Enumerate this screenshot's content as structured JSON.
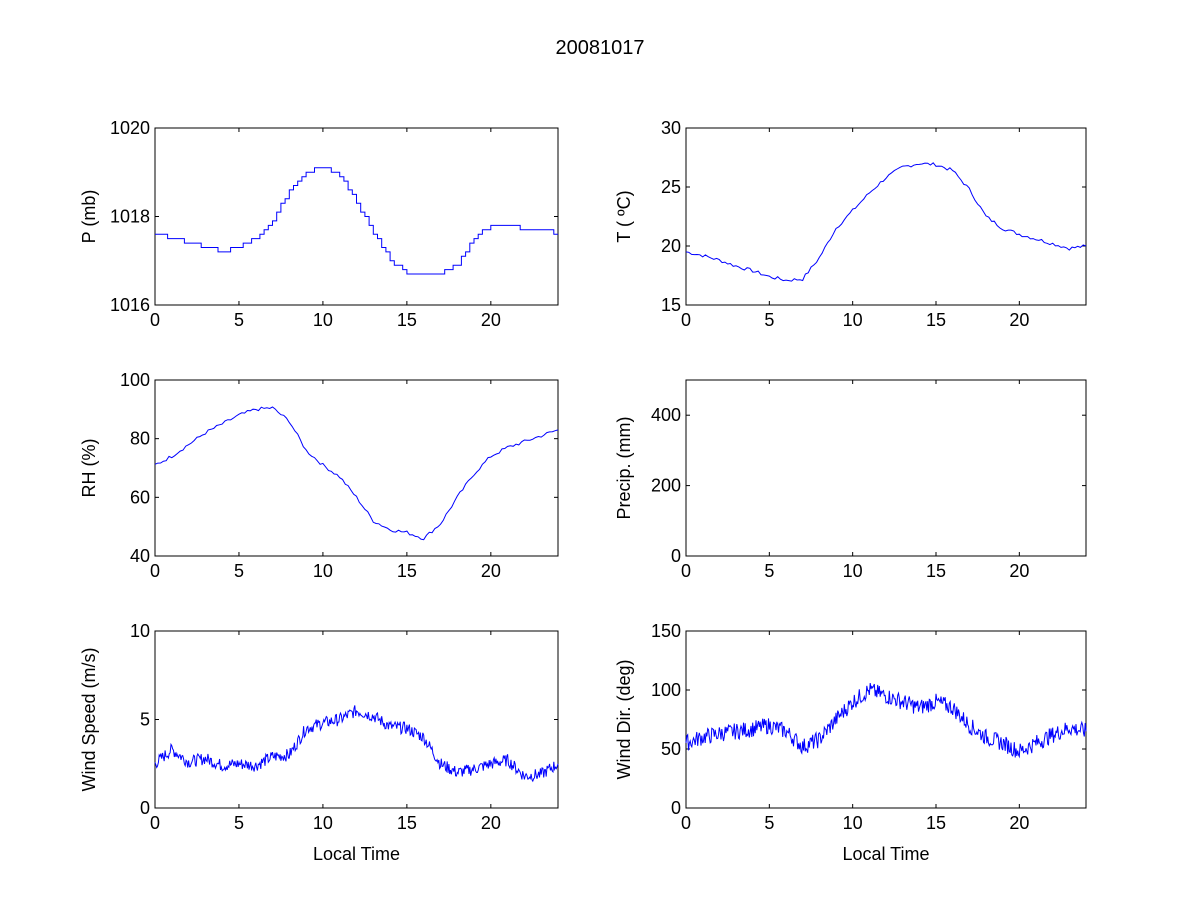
{
  "figure_title": "20081017",
  "chart_data": [
    {
      "type": "line",
      "id": "pressure",
      "ylabel": "P (mb)",
      "xlabel": "",
      "xlim": [
        0,
        24
      ],
      "ylim": [
        1016,
        1020
      ],
      "xticks": [
        0,
        5,
        10,
        15,
        20
      ],
      "yticks": [
        1016,
        1018,
        1020
      ],
      "step": true,
      "color": "#0000ff",
      "x": [
        0,
        1,
        2,
        3,
        4,
        5,
        6,
        7,
        8,
        9,
        10,
        11,
        12,
        13,
        14,
        15,
        16,
        17,
        18,
        19,
        20,
        21,
        22,
        23,
        24
      ],
      "y": [
        1017.6,
        1017.5,
        1017.4,
        1017.3,
        1017.2,
        1017.3,
        1017.5,
        1017.9,
        1018.6,
        1019.0,
        1019.1,
        1018.9,
        1018.3,
        1017.6,
        1017.0,
        1016.7,
        1016.7,
        1016.7,
        1016.9,
        1017.5,
        1017.8,
        1017.8,
        1017.7,
        1017.7,
        1017.6
      ]
    },
    {
      "type": "line",
      "id": "temperature",
      "ylabel": "T ( ºC)",
      "xlabel": "",
      "xlim": [
        0,
        24
      ],
      "ylim": [
        15,
        30
      ],
      "xticks": [
        0,
        5,
        10,
        15,
        20
      ],
      "yticks": [
        15,
        20,
        25,
        30
      ],
      "color": "#0000ff",
      "x": [
        0,
        1,
        2,
        3,
        4,
        5,
        6,
        7,
        8,
        9,
        10,
        11,
        12,
        13,
        14,
        15,
        16,
        17,
        18,
        19,
        20,
        21,
        22,
        23,
        24
      ],
      "y": [
        19.5,
        19.2,
        18.8,
        18.3,
        17.9,
        17.4,
        17.1,
        17.2,
        19.0,
        21.5,
        23.0,
        24.5,
        25.8,
        26.7,
        27.0,
        26.9,
        26.4,
        24.8,
        22.5,
        21.5,
        21.0,
        20.6,
        20.2,
        19.8,
        20.0
      ]
    },
    {
      "type": "line",
      "id": "humidity",
      "ylabel": "RH (%)",
      "xlabel": "",
      "xlim": [
        0,
        24
      ],
      "ylim": [
        40,
        100
      ],
      "xticks": [
        0,
        5,
        10,
        15,
        20
      ],
      "yticks": [
        40,
        60,
        80,
        100
      ],
      "color": "#0000ff",
      "x": [
        0,
        1,
        2,
        3,
        4,
        5,
        6,
        7,
        8,
        9,
        10,
        11,
        12,
        13,
        14,
        15,
        16,
        17,
        18,
        19,
        20,
        21,
        22,
        23,
        24
      ],
      "y": [
        71,
        74,
        78,
        82,
        85,
        88,
        90,
        90.5,
        86,
        76,
        71,
        67,
        60,
        52,
        49,
        48,
        46,
        51,
        60,
        68,
        74,
        77,
        79,
        81,
        83
      ]
    },
    {
      "type": "line",
      "id": "precip",
      "ylabel": "Precip. (mm)",
      "xlabel": "",
      "xlim": [
        0,
        24
      ],
      "ylim": [
        0,
        500
      ],
      "xticks": [
        0,
        5,
        10,
        15,
        20
      ],
      "yticks": [
        0,
        200,
        400
      ],
      "color": "#0000ff",
      "x": [],
      "y": []
    },
    {
      "type": "line",
      "id": "windspeed",
      "ylabel": "Wind Speed (m/s)",
      "xlabel": "Local Time",
      "xlim": [
        0,
        24
      ],
      "ylim": [
        0,
        10
      ],
      "xticks": [
        0,
        5,
        10,
        15,
        20
      ],
      "yticks": [
        0,
        5,
        10
      ],
      "color": "#0000ff",
      "noise": 0.35,
      "x": [
        0,
        1,
        2,
        3,
        4,
        5,
        6,
        7,
        8,
        9,
        10,
        11,
        12,
        13,
        14,
        15,
        16,
        17,
        18,
        19,
        20,
        21,
        22,
        23,
        24
      ],
      "y": [
        2.5,
        3.3,
        2.6,
        2.8,
        2.4,
        2.5,
        2.4,
        2.9,
        3.0,
        4.5,
        4.8,
        5.0,
        5.5,
        5.2,
        4.6,
        4.5,
        4.0,
        2.5,
        2.0,
        2.2,
        2.5,
        2.7,
        1.8,
        1.9,
        2.5
      ]
    },
    {
      "type": "line",
      "id": "winddir",
      "ylabel": "Wind Dir. (deg)",
      "xlabel": "Local Time",
      "xlim": [
        0,
        24
      ],
      "ylim": [
        0,
        150
      ],
      "xticks": [
        0,
        5,
        10,
        15,
        20
      ],
      "yticks": [
        0,
        50,
        100,
        150
      ],
      "color": "#0000ff",
      "noise": 7,
      "x": [
        0,
        1,
        2,
        3,
        4,
        5,
        6,
        7,
        8,
        9,
        10,
        11,
        12,
        13,
        14,
        15,
        16,
        17,
        18,
        19,
        20,
        21,
        22,
        23,
        24
      ],
      "y": [
        55,
        60,
        63,
        65,
        67,
        70,
        65,
        52,
        58,
        75,
        90,
        100,
        95,
        90,
        85,
        90,
        85,
        70,
        60,
        55,
        48,
        55,
        62,
        68,
        65
      ]
    }
  ]
}
